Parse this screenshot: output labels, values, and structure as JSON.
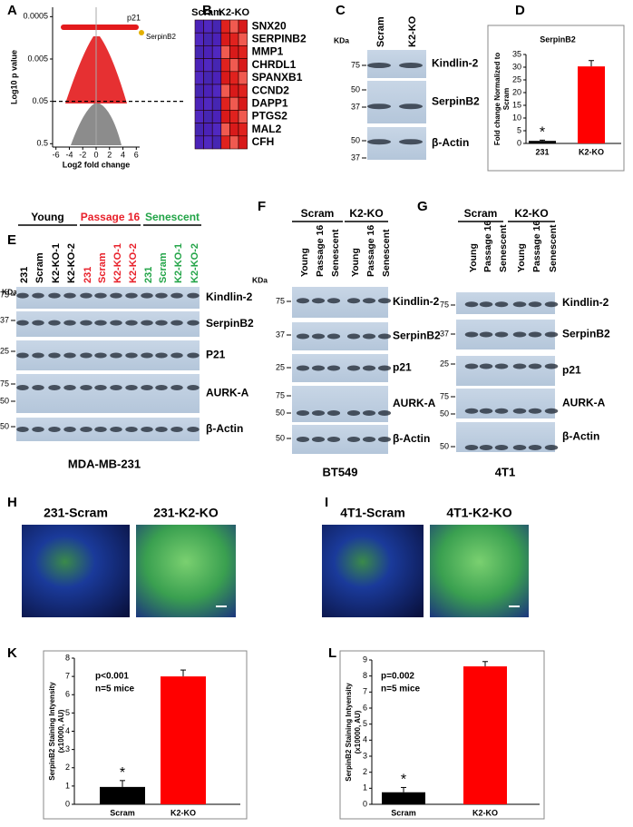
{
  "chart_data": [
    {
      "type": "scatter",
      "panel": "A",
      "xlabel": "Log2 fold change",
      "ylabel": "Log10 p value",
      "annotations": [
        "p21",
        "SerpinB2"
      ],
      "log_y": true,
      "xlim": [
        -6.5,
        6.5
      ],
      "xticks": [
        -6,
        -4,
        -2,
        0,
        2,
        4,
        6
      ],
      "ylim": [
        0.6,
        0.0003
      ],
      "yticks": [
        0.0005,
        0.005,
        0.05,
        0.5
      ]
    },
    {
      "type": "bar",
      "panel": "D",
      "title": "SerpinB2",
      "ylabel": [
        "Fold change Normalized to",
        "Scram"
      ],
      "categories": [
        "231",
        "K2-KO"
      ],
      "values": [
        1,
        30.3
      ],
      "errors": [
        0.3,
        2.3
      ],
      "colors": [
        "#000000",
        "#ff0000"
      ],
      "star": "*",
      "ylim": [
        0,
        35
      ],
      "yticks": [
        0,
        5,
        10,
        15,
        20,
        25,
        30,
        35
      ]
    },
    {
      "type": "bar",
      "panel": "K",
      "ylabel": [
        "SerpinB2 Staining Intyensity",
        "(x10000, AU)"
      ],
      "categories": [
        "Scram",
        "K2-KO"
      ],
      "values": [
        0.95,
        7.0
      ],
      "errors": [
        0.35,
        0.35
      ],
      "colors": [
        "#000000",
        "#ff0000"
      ],
      "star": "*",
      "stats": [
        "p<0.001",
        "n=5 mice"
      ],
      "ylim": [
        0,
        8
      ],
      "yticks": [
        0,
        1,
        2,
        3,
        4,
        5,
        6,
        7,
        8
      ]
    },
    {
      "type": "bar",
      "panel": "L",
      "ylabel": [
        "SerpinB2 Staining Intyensity",
        "(x10000, AU)"
      ],
      "categories": [
        "Scram",
        "K2-KO"
      ],
      "values": [
        0.75,
        8.6
      ],
      "errors": [
        0.3,
        0.3
      ],
      "colors": [
        "#000000",
        "#ff0000"
      ],
      "star": "*",
      "stats": [
        "p=0.002",
        "n=5 mice"
      ],
      "ylim": [
        0,
        9
      ],
      "yticks": [
        0,
        1,
        2,
        3,
        4,
        5,
        6,
        7,
        8,
        9
      ]
    }
  ],
  "heatmap": {
    "panel": "B",
    "columns": [
      "Scram",
      "K2-KO"
    ],
    "genes": [
      "SNX20",
      "SERPINB2",
      "MMP1",
      "CHRDL1",
      "SPANXB1",
      "CCND2",
      "DAPP1",
      "PTGS2",
      "MAL2",
      "CFH"
    ]
  },
  "blots": [
    {
      "panel": "C",
      "kda": "KDa",
      "lanes": [
        {
          "label": "Scram"
        },
        {
          "label": "K2-KO"
        }
      ],
      "rows": [
        {
          "protein": "Kindlin-2",
          "markers": [
            75
          ]
        },
        {
          "protein": "SerpinB2",
          "markers": [
            50,
            37
          ]
        },
        {
          "protein": "β-Actin",
          "markers": [
            50,
            37
          ]
        }
      ]
    },
    {
      "panel": "E",
      "kda": "KDa",
      "cell_line": "MDA-MB-231",
      "groups": [
        {
          "label": "Young",
          "color": "#000000"
        },
        {
          "label": "Passage 16",
          "color": "#e8202a"
        },
        {
          "label": "Senescent",
          "color": "#22a447"
        }
      ],
      "lanes": [
        {
          "label": "231",
          "color": "#000000"
        },
        {
          "label": "Scram",
          "color": "#000000"
        },
        {
          "label": "K2-KO-1",
          "color": "#000000"
        },
        {
          "label": "K2-KO-2",
          "color": "#000000"
        },
        {
          "label": "231",
          "color": "#e8202a"
        },
        {
          "label": "Scram",
          "color": "#e8202a"
        },
        {
          "label": "K2-KO-1",
          "color": "#e8202a"
        },
        {
          "label": "K2-KO-2",
          "color": "#e8202a"
        },
        {
          "label": "231",
          "color": "#22a447"
        },
        {
          "label": "Scram",
          "color": "#22a447"
        },
        {
          "label": "K2-KO-1",
          "color": "#22a447"
        },
        {
          "label": "K2-KO-2",
          "color": "#22a447"
        }
      ],
      "rows": [
        {
          "protein": "Kindlin-2",
          "markers": [
            75
          ]
        },
        {
          "protein": "SerpinB2",
          "markers": [
            37
          ]
        },
        {
          "protein": "P21",
          "markers": [
            25
          ]
        },
        {
          "protein": "AURK-A",
          "markers": [
            75,
            50
          ]
        },
        {
          "protein": "β-Actin",
          "markers": [
            50
          ]
        }
      ]
    },
    {
      "panel": "F",
      "kda": "KDa",
      "cell_line": "BT549",
      "groups": [
        {
          "label": "Scram",
          "color": "#000000"
        },
        {
          "label": "K2-KO",
          "color": "#000000"
        }
      ],
      "lanes": [
        {
          "label": "Young"
        },
        {
          "label": "Passage 16"
        },
        {
          "label": "Senescent"
        },
        {
          "label": "Young"
        },
        {
          "label": "Passage 16"
        },
        {
          "label": "Senescent"
        }
      ],
      "rows": [
        {
          "protein": "Kindlin-2",
          "markers": [
            75
          ]
        },
        {
          "protein": "SerpinB2",
          "markers": [
            37
          ]
        },
        {
          "protein": "p21",
          "markers": [
            25
          ]
        },
        {
          "protein": "AURK-A",
          "markers": [
            75,
            50
          ]
        },
        {
          "protein": "β-Actin",
          "markers": [
            50
          ]
        }
      ]
    },
    {
      "panel": "G",
      "cell_line": "4T1",
      "groups": [
        {
          "label": "Scram",
          "color": "#000000"
        },
        {
          "label": "K2-KO",
          "color": "#000000"
        }
      ],
      "lanes": [
        {
          "label": "Young"
        },
        {
          "label": "Passage 16"
        },
        {
          "label": "Senescent"
        },
        {
          "label": "Young"
        },
        {
          "label": "Passage 16"
        },
        {
          "label": "Senescent"
        }
      ],
      "rows": [
        {
          "protein": "Kindlin-2",
          "markers": [
            75
          ]
        },
        {
          "protein": "SerpinB2",
          "markers": [
            37
          ]
        },
        {
          "protein": "p21",
          "markers": [
            25
          ]
        },
        {
          "protein": "AURK-A",
          "markers": [
            75,
            50
          ]
        },
        {
          "protein": "β-Actin",
          "markers": [
            50
          ]
        }
      ]
    }
  ],
  "images": [
    {
      "panel": "H",
      "titles": [
        "231-Scram",
        "231-K2-KO"
      ]
    },
    {
      "panel": "I",
      "titles": [
        "4T1-Scram",
        "4T1-K2-KO"
      ]
    }
  ]
}
